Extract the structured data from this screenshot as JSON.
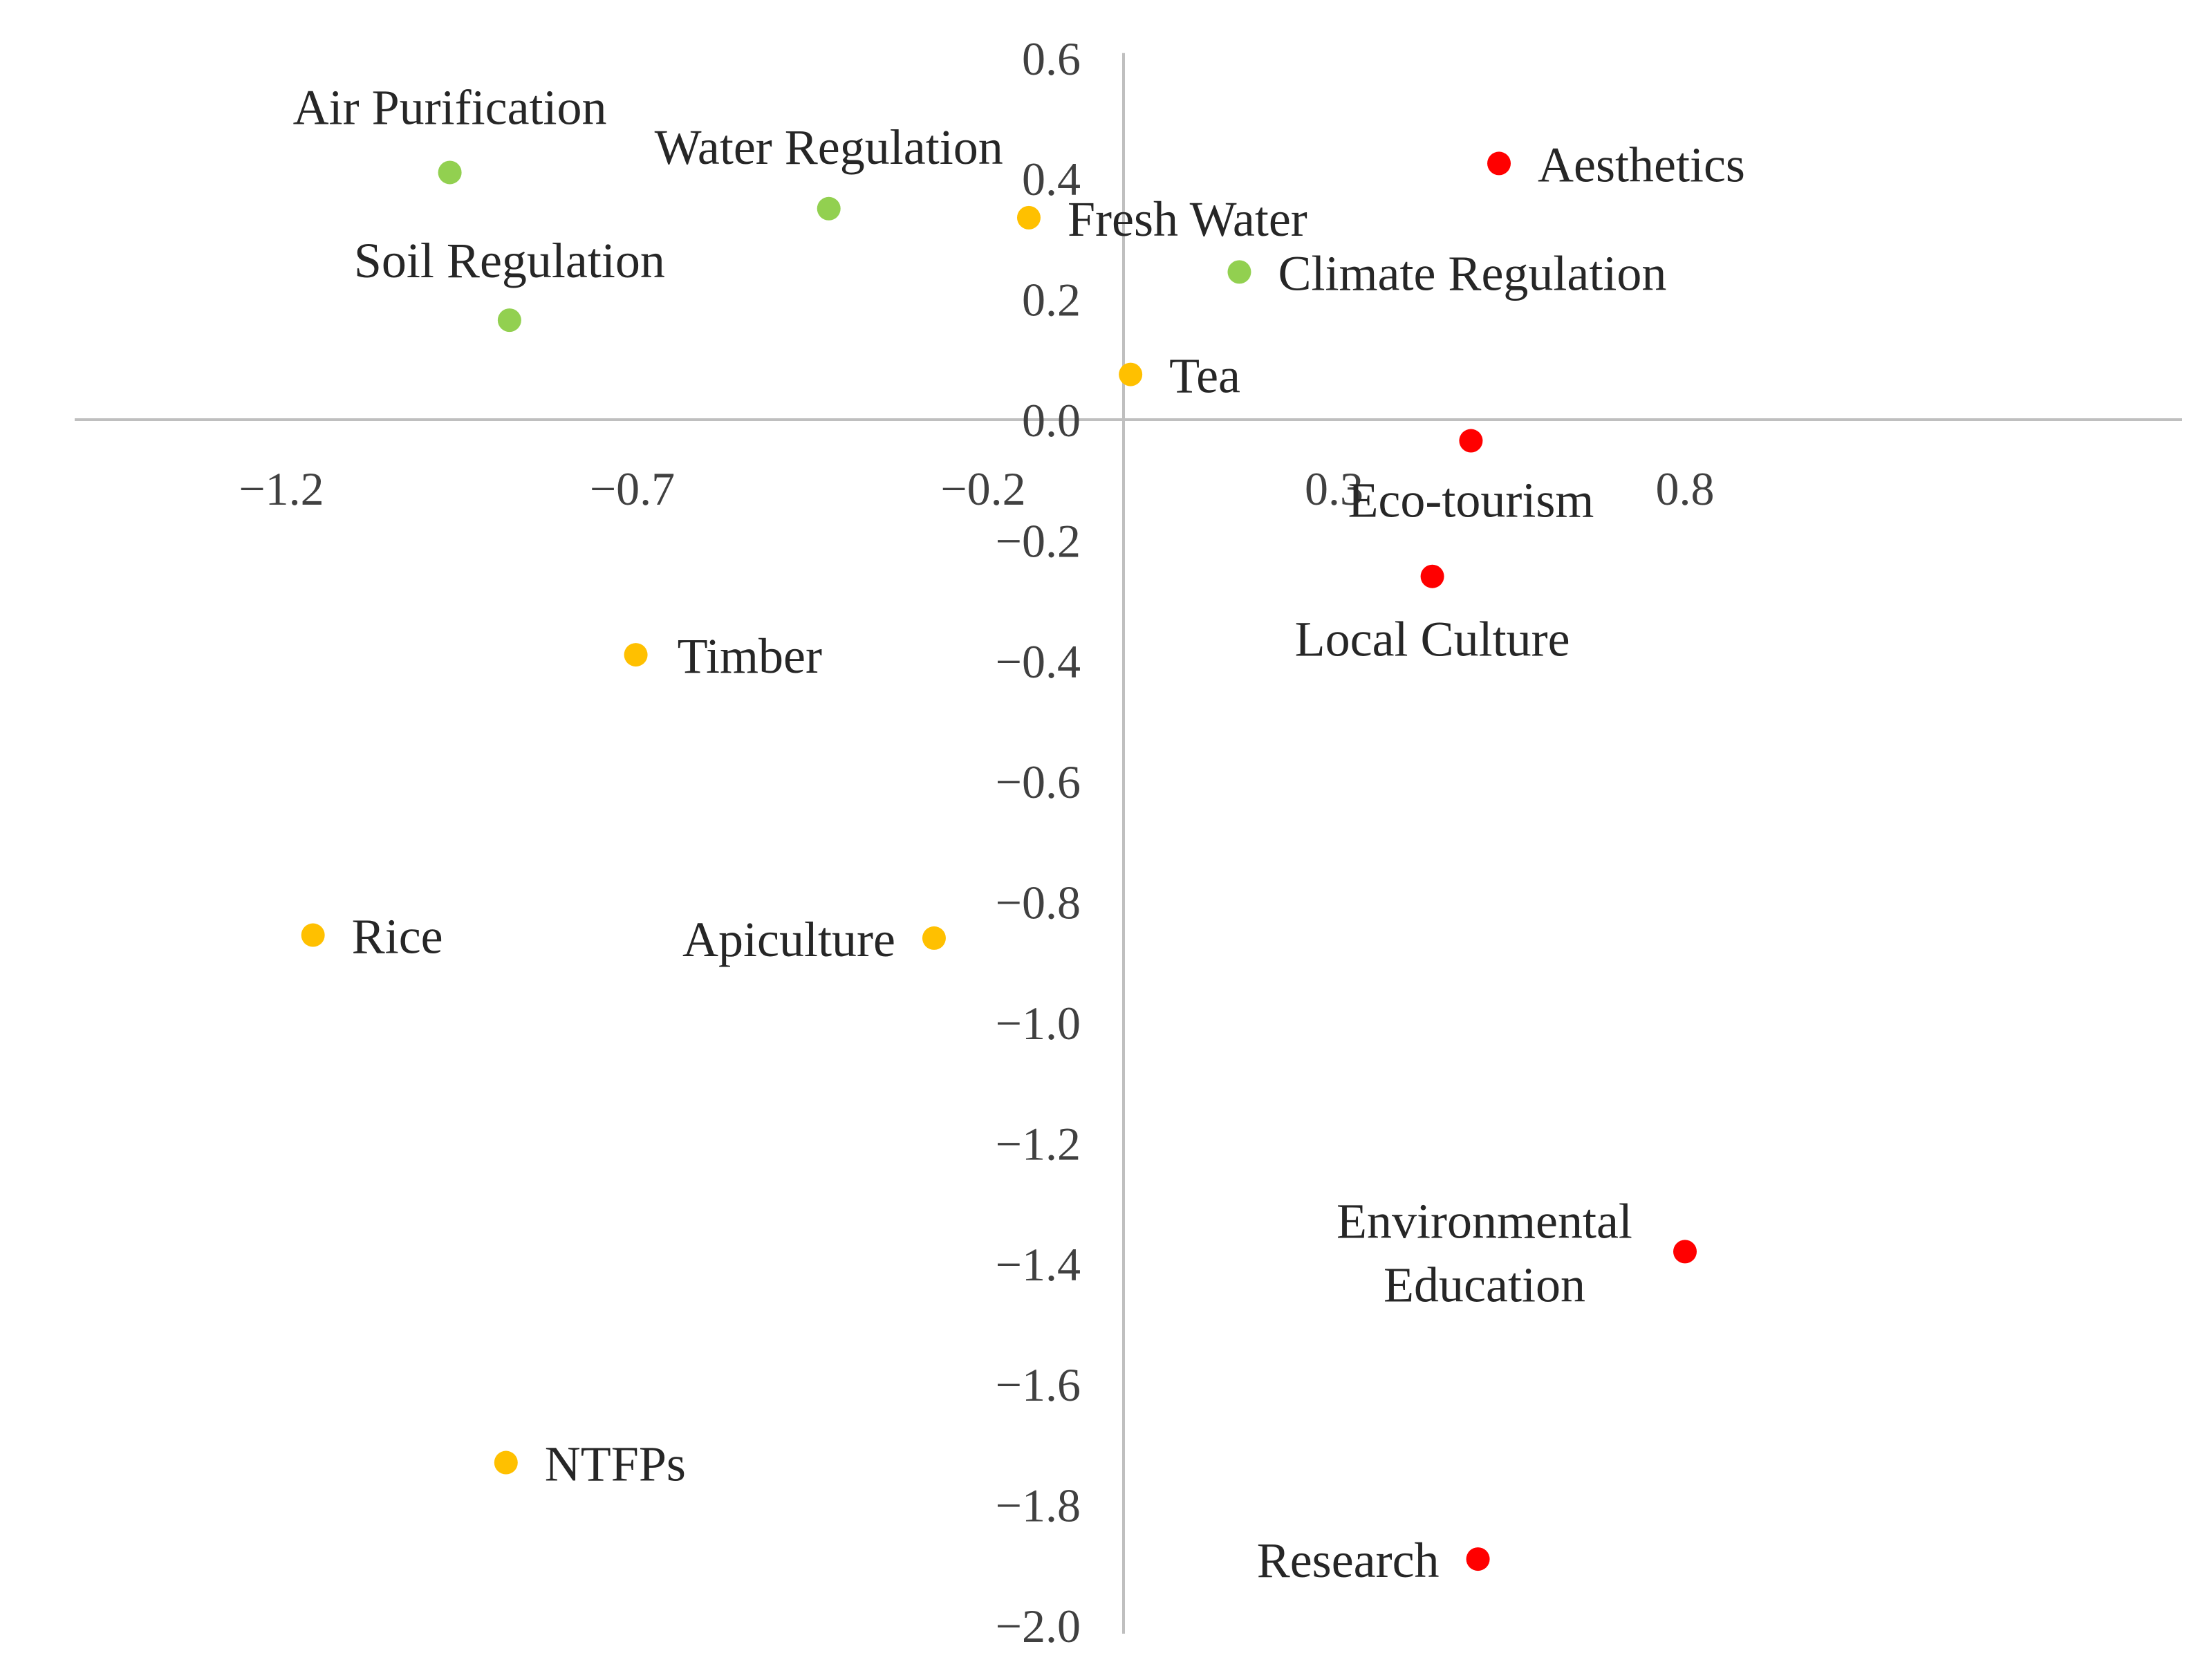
{
  "chart_data": {
    "type": "scatter",
    "title": "",
    "xlabel": "",
    "ylabel": "",
    "xlim": [
      -1.2,
      1.2
    ],
    "ylim": [
      -2.0,
      0.6
    ],
    "grid": false,
    "legend": "none",
    "x_ticks": [
      {
        "value": -1.2,
        "label": "−1.2"
      },
      {
        "value": -0.7,
        "label": "−0.7"
      },
      {
        "value": -0.2,
        "label": "−0.2"
      },
      {
        "value": 0.3,
        "label": "0.3"
      },
      {
        "value": 0.8,
        "label": "0.8"
      }
    ],
    "y_ticks": [
      {
        "value": 0.6,
        "label": "0.6"
      },
      {
        "value": 0.4,
        "label": "0.4"
      },
      {
        "value": 0.2,
        "label": "0.2"
      },
      {
        "value": 0.0,
        "label": "0.0"
      },
      {
        "value": -0.2,
        "label": "−0.2"
      },
      {
        "value": -0.4,
        "label": "−0.4"
      },
      {
        "value": -0.6,
        "label": "−0.6"
      },
      {
        "value": -0.8,
        "label": "−0.8"
      },
      {
        "value": -1.0,
        "label": "−1.0"
      },
      {
        "value": -1.2,
        "label": "−1.2"
      },
      {
        "value": -1.4,
        "label": "−1.4"
      },
      {
        "value": -1.6,
        "label": "−1.6"
      },
      {
        "value": -1.8,
        "label": "−1.8"
      },
      {
        "value": -2.0,
        "label": "−2.0"
      }
    ],
    "colors": {
      "regulating": "#92d050",
      "provisioning": "#ffc000",
      "cultural": "#ff0000"
    },
    "points": [
      {
        "label": "Air Purification",
        "x": -0.96,
        "y": 0.41,
        "group": "regulating"
      },
      {
        "label": "Water Regulation",
        "x": -0.42,
        "y": 0.35,
        "group": "regulating"
      },
      {
        "label": "Soil Regulation",
        "x": -0.875,
        "y": 0.165,
        "group": "regulating"
      },
      {
        "label": "Climate Regulation",
        "x": 0.165,
        "y": 0.245,
        "group": "regulating"
      },
      {
        "label": "Fresh Water",
        "x": -0.135,
        "y": 0.335,
        "group": "provisioning"
      },
      {
        "label": "Tea",
        "x": 0.01,
        "y": 0.075,
        "group": "provisioning"
      },
      {
        "label": "Timber",
        "x": -0.695,
        "y": -0.39,
        "group": "provisioning"
      },
      {
        "label": "Rice",
        "x": -1.155,
        "y": -0.855,
        "group": "provisioning"
      },
      {
        "label": "Apiculture",
        "x": -0.27,
        "y": -0.86,
        "group": "provisioning"
      },
      {
        "label": "NTFPs",
        "x": -0.88,
        "y": -1.73,
        "group": "provisioning"
      },
      {
        "label": "Aesthetics",
        "x": 0.535,
        "y": 0.425,
        "group": "cultural"
      },
      {
        "label": "Eco-tourism",
        "x": 0.495,
        "y": -0.035,
        "group": "cultural"
      },
      {
        "label": "Local Culture",
        "x": 0.44,
        "y": -0.26,
        "group": "cultural"
      },
      {
        "label": "Environmental Education",
        "x": 0.8,
        "y": -1.38,
        "group": "cultural"
      },
      {
        "label": "Research",
        "x": 0.505,
        "y": -1.89,
        "group": "cultural"
      }
    ]
  }
}
